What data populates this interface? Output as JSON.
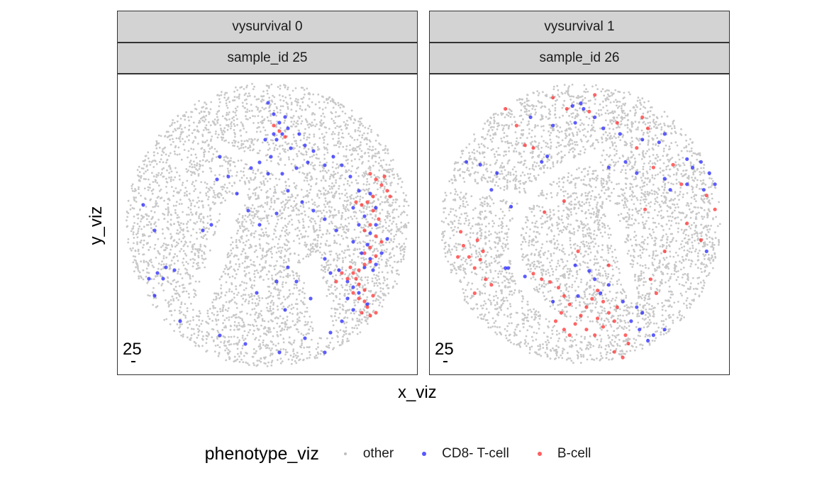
{
  "chart_data": {
    "type": "scatter",
    "facet_by": [
      "vysurvival",
      "sample_id"
    ],
    "xlabel": "x_viz",
    "ylabel": "y_viz",
    "grid": false,
    "legend_position": "bottom",
    "legend": {
      "title": "phenotype_viz",
      "entries": [
        {
          "label": "other",
          "color": "#bebebe"
        },
        {
          "label": "CD8- T-cell",
          "color": "#1f1fff"
        },
        {
          "label": "B-cell",
          "color": "#ff2a2a"
        }
      ]
    },
    "panels": [
      {
        "strip_top": "vysurvival 0",
        "strip_bottom": "sample_id 25",
        "scale_label": "25",
        "x_range": [
          0,
          1
        ],
        "y_range": [
          0,
          1
        ],
        "series": [
          {
            "name": "CD8- T-cell",
            "points": [
              [
                0.5,
                0.93
              ],
              [
                0.52,
                0.89
              ],
              [
                0.54,
                0.86
              ],
              [
                0.56,
                0.88
              ],
              [
                0.55,
                0.82
              ],
              [
                0.57,
                0.84
              ],
              [
                0.52,
                0.82
              ],
              [
                0.49,
                0.8
              ],
              [
                0.53,
                0.8
              ],
              [
                0.61,
                0.82
              ],
              [
                0.63,
                0.78
              ],
              [
                0.58,
                0.77
              ],
              [
                0.66,
                0.76
              ],
              [
                0.47,
                0.72
              ],
              [
                0.51,
                0.74
              ],
              [
                0.44,
                0.7
              ],
              [
                0.5,
                0.68
              ],
              [
                0.55,
                0.68
              ],
              [
                0.6,
                0.7
              ],
              [
                0.64,
                0.72
              ],
              [
                0.7,
                0.71
              ],
              [
                0.73,
                0.74
              ],
              [
                0.76,
                0.71
              ],
              [
                0.79,
                0.67
              ],
              [
                0.82,
                0.62
              ],
              [
                0.86,
                0.61
              ],
              [
                0.88,
                0.56
              ],
              [
                0.84,
                0.53
              ],
              [
                0.8,
                0.56
              ],
              [
                0.82,
                0.5
              ],
              [
                0.86,
                0.47
              ],
              [
                0.88,
                0.5
              ],
              [
                0.85,
                0.43
              ],
              [
                0.83,
                0.4
              ],
              [
                0.8,
                0.44
              ],
              [
                0.74,
                0.48
              ],
              [
                0.7,
                0.52
              ],
              [
                0.66,
                0.55
              ],
              [
                0.62,
                0.58
              ],
              [
                0.57,
                0.62
              ],
              [
                0.53,
                0.54
              ],
              [
                0.47,
                0.5
              ],
              [
                0.43,
                0.55
              ],
              [
                0.39,
                0.61
              ],
              [
                0.36,
                0.67
              ],
              [
                0.33,
                0.74
              ],
              [
                0.27,
                0.48
              ],
              [
                0.3,
                0.5
              ],
              [
                0.32,
                0.66
              ],
              [
                0.7,
                0.38
              ],
              [
                0.72,
                0.33
              ],
              [
                0.75,
                0.34
              ],
              [
                0.78,
                0.3
              ],
              [
                0.8,
                0.28
              ],
              [
                0.78,
                0.24
              ],
              [
                0.82,
                0.26
              ],
              [
                0.85,
                0.22
              ],
              [
                0.8,
                0.2
              ],
              [
                0.76,
                0.16
              ],
              [
                0.72,
                0.12
              ],
              [
                0.65,
                0.24
              ],
              [
                0.6,
                0.3
              ],
              [
                0.57,
                0.35
              ],
              [
                0.53,
                0.3
              ],
              [
                0.46,
                0.26
              ],
              [
                0.56,
                0.2
              ],
              [
                0.63,
                0.1
              ],
              [
                0.7,
                0.05
              ],
              [
                0.54,
                0.05
              ],
              [
                0.42,
                0.08
              ],
              [
                0.33,
                0.11
              ],
              [
                0.19,
                0.16
              ],
              [
                0.1,
                0.25
              ],
              [
                0.08,
                0.31
              ],
              [
                0.11,
                0.33
              ],
              [
                0.13,
                0.31
              ],
              [
                0.14,
                0.35
              ],
              [
                0.17,
                0.34
              ],
              [
                0.1,
                0.48
              ],
              [
                0.06,
                0.57
              ],
              [
                0.86,
                0.38
              ],
              [
                0.88,
                0.36
              ],
              [
                0.84,
                0.35
              ],
              [
                0.87,
                0.34
              ],
              [
                0.9,
                0.4
              ],
              [
                0.92,
                0.45
              ]
            ]
          },
          {
            "name": "B-cell",
            "points": [
              [
                0.52,
                0.85
              ],
              [
                0.54,
                0.83
              ],
              [
                0.56,
                0.81
              ],
              [
                0.86,
                0.68
              ],
              [
                0.88,
                0.66
              ],
              [
                0.9,
                0.64
              ],
              [
                0.92,
                0.62
              ],
              [
                0.87,
                0.6
              ],
              [
                0.85,
                0.58
              ],
              [
                0.83,
                0.57
              ],
              [
                0.81,
                0.58
              ],
              [
                0.87,
                0.55
              ],
              [
                0.89,
                0.52
              ],
              [
                0.86,
                0.5
              ],
              [
                0.84,
                0.48
              ],
              [
                0.88,
                0.46
              ],
              [
                0.9,
                0.44
              ],
              [
                0.86,
                0.42
              ],
              [
                0.84,
                0.4
              ],
              [
                0.88,
                0.39
              ],
              [
                0.86,
                0.37
              ],
              [
                0.84,
                0.36
              ],
              [
                0.82,
                0.34
              ],
              [
                0.8,
                0.33
              ],
              [
                0.78,
                0.31
              ],
              [
                0.82,
                0.29
              ],
              [
                0.84,
                0.27
              ],
              [
                0.8,
                0.26
              ],
              [
                0.82,
                0.24
              ],
              [
                0.85,
                0.21
              ],
              [
                0.83,
                0.19
              ],
              [
                0.86,
                0.18
              ],
              [
                0.88,
                0.19
              ],
              [
                0.84,
                0.23
              ],
              [
                0.87,
                0.25
              ],
              [
                0.81,
                0.31
              ],
              [
                0.79,
                0.35
              ],
              [
                0.76,
                0.33
              ],
              [
                0.74,
                0.3
              ],
              [
                0.91,
                0.67
              ],
              [
                0.93,
                0.6
              ]
            ]
          }
        ]
      },
      {
        "strip_top": "vysurvival 1",
        "strip_bottom": "sample_id 26",
        "scale_label": "25",
        "x_range": [
          0,
          1
        ],
        "y_range": [
          0,
          1
        ],
        "series": [
          {
            "name": "CD8- T-cell",
            "points": [
              [
                0.32,
                0.88
              ],
              [
                0.4,
                0.85
              ],
              [
                0.47,
                0.92
              ],
              [
                0.5,
                0.93
              ],
              [
                0.51,
                0.91
              ],
              [
                0.55,
                0.88
              ],
              [
                0.48,
                0.86
              ],
              [
                0.58,
                0.84
              ],
              [
                0.64,
                0.82
              ],
              [
                0.72,
                0.8
              ],
              [
                0.78,
                0.79
              ],
              [
                0.8,
                0.82
              ],
              [
                0.88,
                0.73
              ],
              [
                0.93,
                0.72
              ],
              [
                0.9,
                0.7
              ],
              [
                0.96,
                0.68
              ],
              [
                0.98,
                0.64
              ],
              [
                0.94,
                0.62
              ],
              [
                0.88,
                0.64
              ],
              [
                0.82,
                0.62
              ],
              [
                0.8,
                0.66
              ],
              [
                0.7,
                0.68
              ],
              [
                0.66,
                0.72
              ],
              [
                0.6,
                0.7
              ],
              [
                0.38,
                0.74
              ],
              [
                0.36,
                0.72
              ],
              [
                0.2,
                0.68
              ],
              [
                0.14,
                0.71
              ],
              [
                0.09,
                0.72
              ],
              [
                0.18,
                0.62
              ],
              [
                0.25,
                0.56
              ],
              [
                0.48,
                0.35
              ],
              [
                0.53,
                0.33
              ],
              [
                0.55,
                0.3
              ],
              [
                0.49,
                0.24
              ],
              [
                0.4,
                0.22
              ],
              [
                0.3,
                0.31
              ],
              [
                0.23,
                0.34
              ],
              [
                0.24,
                0.34
              ],
              [
                0.57,
                0.25
              ],
              [
                0.6,
                0.28
              ],
              [
                0.65,
                0.22
              ],
              [
                0.7,
                0.2
              ],
              [
                0.72,
                0.18
              ],
              [
                0.68,
                0.15
              ],
              [
                0.71,
                0.12
              ],
              [
                0.76,
                0.1
              ],
              [
                0.8,
                0.12
              ],
              [
                0.74,
                0.08
              ],
              [
                0.95,
                0.4
              ]
            ]
          },
          {
            "name": "B-cell",
            "points": [
              [
                0.23,
                0.91
              ],
              [
                0.27,
                0.85
              ],
              [
                0.4,
                0.95
              ],
              [
                0.45,
                0.91
              ],
              [
                0.55,
                0.96
              ],
              [
                0.53,
                0.9
              ],
              [
                0.63,
                0.86
              ],
              [
                0.72,
                0.88
              ],
              [
                0.74,
                0.84
              ],
              [
                0.7,
                0.77
              ],
              [
                0.76,
                0.7
              ],
              [
                0.83,
                0.71
              ],
              [
                0.86,
                0.64
              ],
              [
                0.95,
                0.6
              ],
              [
                0.73,
                0.55
              ],
              [
                0.3,
                0.78
              ],
              [
                0.33,
                0.77
              ],
              [
                0.37,
                0.54
              ],
              [
                0.44,
                0.58
              ],
              [
                0.07,
                0.47
              ],
              [
                0.08,
                0.42
              ],
              [
                0.06,
                0.38
              ],
              [
                0.1,
                0.38
              ],
              [
                0.12,
                0.34
              ],
              [
                0.14,
                0.37
              ],
              [
                0.15,
                0.4
              ],
              [
                0.13,
                0.44
              ],
              [
                0.16,
                0.3
              ],
              [
                0.18,
                0.28
              ],
              [
                0.12,
                0.25
              ],
              [
                0.33,
                0.32
              ],
              [
                0.36,
                0.3
              ],
              [
                0.39,
                0.29
              ],
              [
                0.42,
                0.27
              ],
              [
                0.44,
                0.24
              ],
              [
                0.46,
                0.21
              ],
              [
                0.43,
                0.18
              ],
              [
                0.41,
                0.15
              ],
              [
                0.44,
                0.12
              ],
              [
                0.46,
                0.1
              ],
              [
                0.48,
                0.14
              ],
              [
                0.5,
                0.17
              ],
              [
                0.52,
                0.2
              ],
              [
                0.54,
                0.23
              ],
              [
                0.56,
                0.26
              ],
              [
                0.58,
                0.22
              ],
              [
                0.6,
                0.18
              ],
              [
                0.62,
                0.15
              ],
              [
                0.58,
                0.13
              ],
              [
                0.55,
                0.1
              ],
              [
                0.52,
                0.12
              ],
              [
                0.56,
                0.16
              ],
              [
                0.63,
                0.2
              ],
              [
                0.66,
                0.1
              ],
              [
                0.67,
                0.07
              ],
              [
                0.62,
                0.04
              ],
              [
                0.65,
                0.02
              ],
              [
                0.49,
                0.4
              ],
              [
                0.75,
                0.3
              ],
              [
                0.77,
                0.25
              ],
              [
                0.8,
                0.4
              ],
              [
                0.88,
                0.5
              ],
              [
                0.93,
                0.44
              ],
              [
                0.98,
                0.55
              ],
              [
                0.6,
                0.35
              ]
            ]
          }
        ]
      }
    ]
  }
}
